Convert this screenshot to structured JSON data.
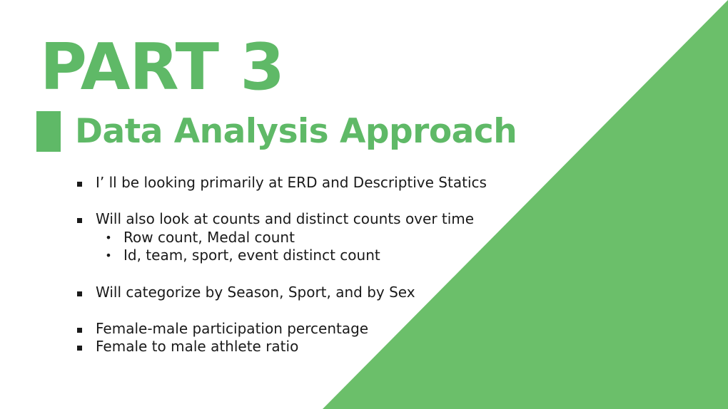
{
  "colors": {
    "accent": "#5fb967",
    "triangle": "#6bbf6a",
    "text": "#1a1a1a",
    "background": "#ffffff"
  },
  "slide": {
    "part_title": "PART 3",
    "subtitle": "Data Analysis Approach",
    "bullets": [
      {
        "text": "I’ ll be looking primarily at ERD and Descriptive Statics",
        "subitems": []
      },
      {
        "text": "Will also look at counts and distinct counts over time",
        "subitems": [
          "Row count, Medal count",
          "Id, team, sport, event distinct count"
        ]
      },
      {
        "text": "Will categorize by Season, Sport, and by Sex",
        "subitems": []
      },
      {
        "text": "Female-male participation percentage",
        "subitems": []
      },
      {
        "text": "Female to male athlete ratio",
        "subitems": []
      }
    ],
    "sub_marker": "•"
  }
}
